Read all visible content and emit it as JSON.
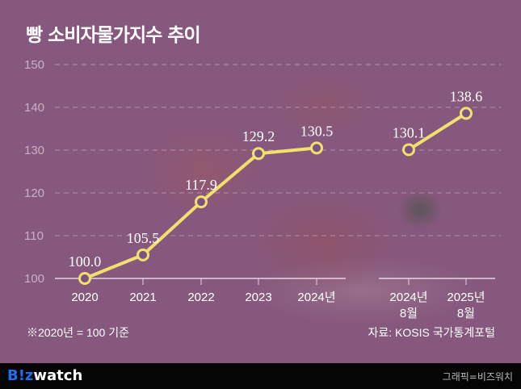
{
  "chart_data": {
    "type": "line",
    "title": "빵 소비자물가지수 추이",
    "ylim": [
      100,
      150
    ],
    "yticks": [
      "100",
      "110",
      "120",
      "130",
      "140",
      "150"
    ],
    "grid": true,
    "segments": [
      {
        "categories": [
          "2020",
          "2021",
          "2022",
          "2023",
          "2024년"
        ],
        "values": [
          100.0,
          105.5,
          117.9,
          129.2,
          130.5
        ],
        "labels": [
          "100.0",
          "105.5",
          "117.9",
          "129.2",
          "130.5"
        ]
      },
      {
        "categories": [
          "2024년\n8월",
          "2025년\n8월"
        ],
        "values": [
          130.1,
          138.6
        ],
        "labels": [
          "130.1",
          "138.6"
        ]
      }
    ],
    "line_color": "#f2df6e",
    "note": "※2020년 = 100 기준",
    "source": "자료: KOSIS 국가통계포털"
  },
  "footer": {
    "logo_b": "B!z",
    "logo_w": "watch",
    "credit": "그래픽=비즈워치"
  }
}
